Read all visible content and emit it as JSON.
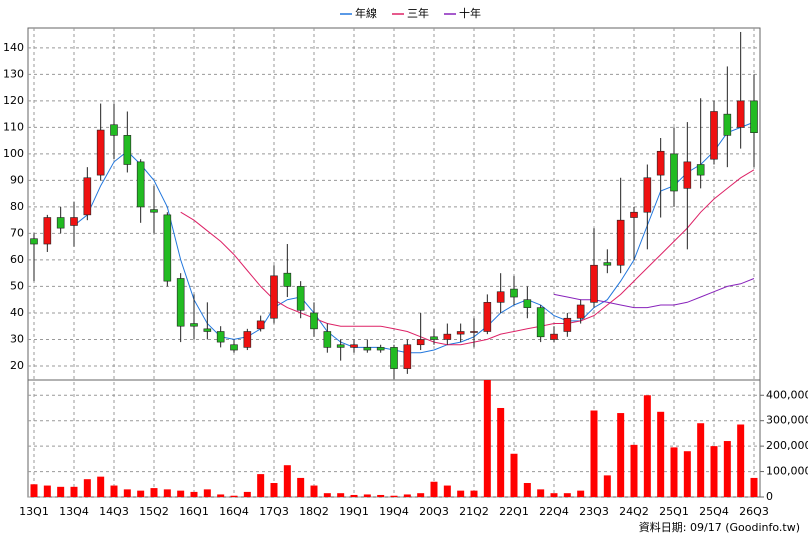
{
  "chart_data": {
    "type": "candlestick",
    "categories": [
      "13Q1",
      null,
      null,
      "13Q4",
      null,
      null,
      "14Q3",
      null,
      null,
      "15Q2",
      null,
      null,
      "16Q1",
      null,
      null,
      "16Q4",
      null,
      null,
      "17Q3",
      null,
      null,
      "18Q2",
      null,
      null,
      "19Q1",
      null,
      null,
      "19Q4",
      null,
      null,
      "20Q3",
      null,
      null,
      "21Q2",
      null,
      null,
      "22Q1",
      null,
      null,
      "22Q4",
      null,
      null,
      "23Q3",
      null,
      null,
      "24Q2",
      null,
      null,
      "25Q1",
      null,
      null,
      "25Q4",
      null,
      null,
      "26Q3"
    ],
    "open": [
      68,
      66,
      76,
      73,
      77,
      92,
      111,
      107,
      97,
      79,
      77,
      53,
      36,
      34,
      33,
      28,
      27,
      34,
      38,
      55,
      50,
      40,
      33,
      28,
      27,
      27,
      27,
      27,
      19,
      28,
      31,
      30,
      32,
      33,
      33,
      44,
      49,
      45,
      42,
      30,
      33,
      38,
      44,
      59,
      58,
      76,
      78,
      92,
      100,
      87,
      96,
      98,
      115,
      110,
      120
    ],
    "high": [
      70,
      77,
      80,
      82,
      95,
      119,
      119,
      116,
      98,
      88,
      78,
      55,
      47,
      44,
      35,
      30,
      34,
      39,
      58,
      66,
      52,
      44,
      36,
      30,
      30,
      30,
      28,
      28,
      30,
      40,
      34,
      36,
      36,
      38,
      47,
      55,
      54,
      50,
      43,
      35,
      40,
      45,
      72,
      64,
      91,
      80,
      96,
      106,
      110,
      112,
      121,
      120,
      133,
      146,
      130
    ],
    "low": [
      52,
      63,
      70,
      65,
      75,
      90,
      98,
      93,
      74,
      70,
      50,
      29,
      30,
      30,
      27,
      25,
      26,
      33,
      36,
      46,
      38,
      31,
      25,
      22,
      25,
      25,
      25,
      15,
      17,
      26,
      28,
      28,
      29,
      27,
      32,
      40,
      43,
      38,
      29,
      29,
      31,
      36,
      42,
      55,
      55,
      60,
      64,
      76,
      80,
      64,
      87,
      96,
      95,
      102,
      95
    ],
    "close": [
      66,
      76,
      72,
      76,
      91,
      109,
      107,
      96,
      80,
      78,
      52,
      35,
      35,
      33,
      29,
      26,
      33,
      37,
      54,
      50,
      41,
      34,
      27,
      27,
      28,
      26,
      26,
      19,
      28,
      30,
      30,
      32,
      33,
      33,
      44,
      48,
      46,
      42,
      31,
      32,
      38,
      43,
      58,
      58,
      75,
      78,
      91,
      101,
      86,
      97,
      92,
      116,
      107,
      120,
      108
    ],
    "volume": [
      50000,
      45000,
      40000,
      40000,
      70000,
      80000,
      45000,
      30000,
      25000,
      35000,
      30000,
      25000,
      20000,
      30000,
      10000,
      5000,
      20000,
      90000,
      55000,
      125000,
      75000,
      45000,
      15000,
      15000,
      8000,
      10000,
      8000,
      5000,
      10000,
      15000,
      60000,
      45000,
      25000,
      25000,
      460000,
      350000,
      170000,
      55000,
      30000,
      15000,
      15000,
      25000,
      340000,
      85000,
      330000,
      205000,
      400000,
      335000,
      195000,
      180000,
      290000,
      200000,
      220000,
      285000,
      75000
    ],
    "up_color": "#ee1111",
    "down_color": "#22bb22",
    "volume_color": "#ff0000",
    "lines": [
      {
        "name": "年線",
        "color": "#2277dd",
        "values": [
          null,
          null,
          null,
          73,
          77,
          88,
          97,
          101,
          96,
          90,
          80,
          60,
          45,
          36,
          31,
          30,
          31,
          34,
          42,
          45,
          46,
          40,
          33,
          29,
          27,
          27,
          27,
          26,
          25,
          25,
          26,
          28,
          29,
          31,
          35,
          40,
          43,
          45,
          43,
          39,
          37,
          37,
          42,
          45,
          52,
          60,
          73,
          86,
          88,
          93,
          96,
          101,
          108,
          110,
          112
        ]
      },
      {
        "name": "三年",
        "color": "#dd2266",
        "values": [
          null,
          null,
          null,
          null,
          null,
          null,
          null,
          null,
          null,
          null,
          null,
          78,
          75,
          71,
          67,
          62,
          56,
          50,
          45,
          42,
          40,
          38,
          36,
          35,
          35,
          35,
          35,
          34,
          33,
          31,
          29,
          28,
          28,
          29,
          30,
          32,
          33,
          34,
          35,
          36,
          36,
          37,
          39,
          43,
          47,
          52,
          57,
          62,
          67,
          72,
          78,
          83,
          87,
          91,
          94
        ]
      },
      {
        "name": "十年",
        "color": "#8822bb",
        "values": [
          null,
          null,
          null,
          null,
          null,
          null,
          null,
          null,
          null,
          null,
          null,
          null,
          null,
          null,
          null,
          null,
          null,
          null,
          null,
          null,
          null,
          null,
          null,
          null,
          null,
          null,
          null,
          null,
          null,
          null,
          null,
          null,
          null,
          null,
          null,
          null,
          null,
          null,
          null,
          47,
          46,
          45,
          45,
          44,
          43,
          42,
          42,
          43,
          43,
          44,
          46,
          48,
          50,
          51,
          53
        ]
      }
    ],
    "ylim": [
      14.7,
      147.5
    ],
    "yticks": [
      20,
      30,
      40,
      50,
      60,
      70,
      80,
      90,
      100,
      110,
      120,
      130,
      140
    ],
    "y2lim": [
      0,
      460000
    ],
    "y2ticks": [
      0,
      {
        "value": 100000,
        "label": "100,000"
      },
      {
        "value": 200000,
        "label": "200,000"
      },
      {
        "value": 300000,
        "label": "300,000"
      },
      {
        "value": 400000,
        "label": "400,000"
      }
    ],
    "grid": true,
    "source": "資料日期: 09/17  (Goodinfo.tw)"
  }
}
